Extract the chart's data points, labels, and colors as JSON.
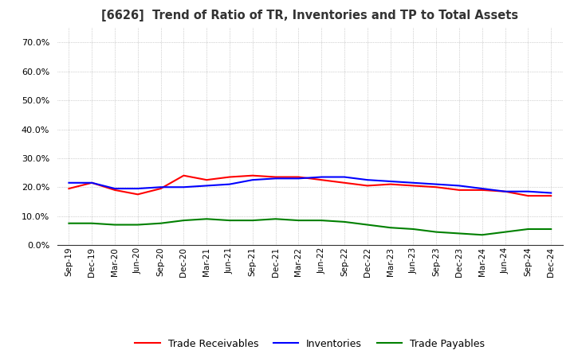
{
  "title": "[6626]  Trend of Ratio of TR, Inventories and TP to Total Assets",
  "x_labels": [
    "Sep-19",
    "Dec-19",
    "Mar-20",
    "Jun-20",
    "Sep-20",
    "Dec-20",
    "Mar-21",
    "Jun-21",
    "Sep-21",
    "Dec-21",
    "Mar-22",
    "Jun-22",
    "Sep-22",
    "Dec-22",
    "Mar-23",
    "Jun-23",
    "Sep-23",
    "Dec-23",
    "Mar-24",
    "Jun-24",
    "Sep-24",
    "Dec-24"
  ],
  "trade_receivables": [
    19.5,
    21.5,
    19.0,
    17.5,
    19.5,
    24.0,
    22.5,
    23.5,
    24.0,
    23.5,
    23.5,
    22.5,
    21.5,
    20.5,
    21.0,
    20.5,
    20.0,
    19.0,
    19.0,
    18.5,
    17.0,
    17.0
  ],
  "inventories": [
    21.5,
    21.5,
    19.5,
    19.5,
    20.0,
    20.0,
    20.5,
    21.0,
    22.5,
    23.0,
    23.0,
    23.5,
    23.5,
    22.5,
    22.0,
    21.5,
    21.0,
    20.5,
    19.5,
    18.5,
    18.5,
    18.0
  ],
  "trade_payables": [
    7.5,
    7.5,
    7.0,
    7.0,
    7.5,
    8.5,
    9.0,
    8.5,
    8.5,
    9.0,
    8.5,
    8.5,
    8.0,
    7.0,
    6.0,
    5.5,
    4.5,
    4.0,
    3.5,
    4.5,
    5.5,
    5.5
  ],
  "tr_color": "#ff0000",
  "inv_color": "#0000ff",
  "tp_color": "#008000",
  "ylim": [
    0,
    75
  ],
  "yticks": [
    0,
    10,
    20,
    30,
    40,
    50,
    60,
    70
  ],
  "background_color": "#ffffff",
  "grid_color": "#aaaaaa"
}
